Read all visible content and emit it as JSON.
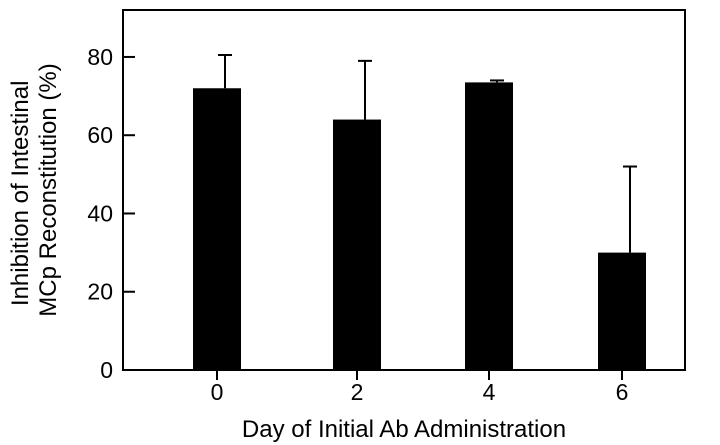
{
  "chart_data": {
    "type": "bar",
    "categories": [
      "0",
      "2",
      "4",
      "6"
    ],
    "series": [
      {
        "values": [
          72,
          64,
          73.5,
          30
        ],
        "error_plus": [
          8.5,
          15,
          0.5,
          22
        ]
      }
    ],
    "xlabel": "Day of Initial Ab Administration",
    "ylabel_lines": [
      "Inhibition of Intestinal",
      "MCp Reconstitution (%)"
    ],
    "ylim": [
      0,
      92
    ],
    "yticks": [
      0,
      20,
      40,
      60,
      80
    ],
    "grid": false,
    "colors": {
      "bar": "#000000",
      "axis": "#000000",
      "background": "#ffffff"
    }
  }
}
